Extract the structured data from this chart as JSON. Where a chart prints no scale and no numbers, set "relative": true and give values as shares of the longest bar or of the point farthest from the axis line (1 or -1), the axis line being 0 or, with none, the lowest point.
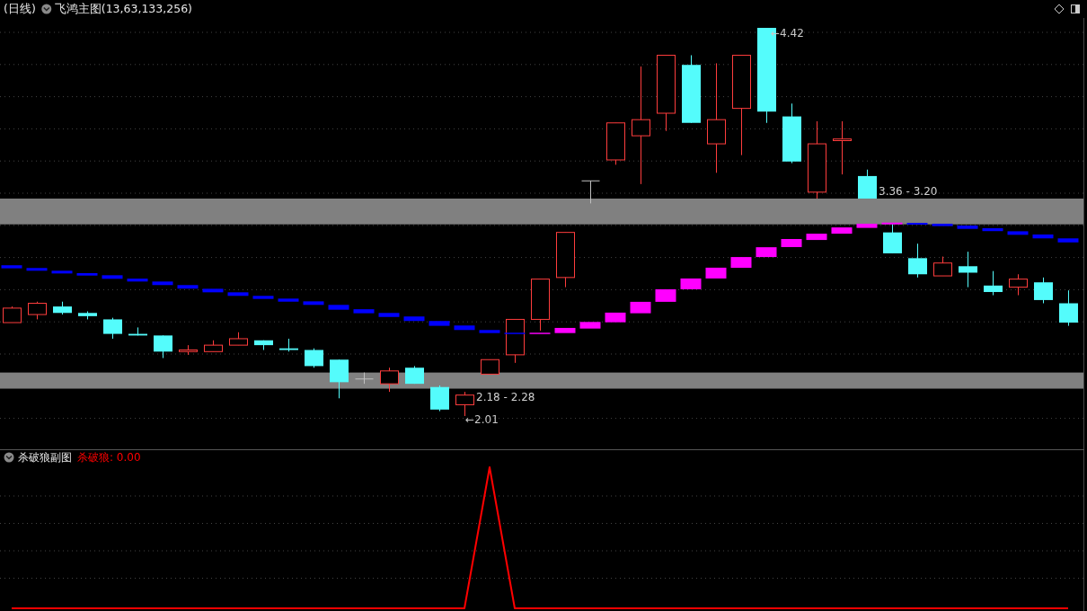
{
  "chart_data": [
    {
      "type": "candlestick",
      "title": "(日线)",
      "subtitle": "飞鸿主图(13,63,133,256)",
      "grid": true,
      "categories": [
        null,
        null,
        null,
        null,
        null,
        null,
        null,
        null,
        null,
        null,
        null,
        null,
        null,
        null,
        null,
        null,
        null,
        null,
        null,
        null,
        null,
        null,
        null,
        null,
        null,
        null,
        null,
        null,
        null,
        null,
        null,
        null,
        null,
        null,
        null,
        null,
        null,
        null,
        null,
        null,
        null,
        null,
        null
      ],
      "ohlc": [
        [
          2.59,
          2.69,
          2.59,
          2.68
        ],
        [
          2.64,
          2.72,
          2.61,
          2.71
        ],
        [
          2.69,
          2.72,
          2.64,
          2.65
        ],
        [
          2.65,
          2.66,
          2.61,
          2.63
        ],
        [
          2.61,
          2.62,
          2.49,
          2.52
        ],
        [
          2.52,
          2.56,
          2.51,
          2.51
        ],
        [
          2.51,
          2.51,
          2.37,
          2.41
        ],
        [
          2.41,
          2.45,
          2.39,
          2.42
        ],
        [
          2.41,
          2.48,
          2.41,
          2.45
        ],
        [
          2.45,
          2.53,
          2.45,
          2.49
        ],
        [
          2.48,
          2.48,
          2.42,
          2.45
        ],
        [
          2.43,
          2.49,
          2.41,
          2.42
        ],
        [
          2.42,
          2.43,
          2.31,
          2.32
        ],
        [
          2.36,
          2.36,
          2.12,
          2.22
        ],
        [
          2.24,
          2.28,
          2.21,
          2.24
        ],
        [
          2.21,
          2.31,
          2.16,
          2.29
        ],
        [
          2.31,
          2.32,
          2.21,
          2.21
        ],
        [
          2.19,
          2.2,
          2.04,
          2.05
        ],
        [
          2.08,
          2.16,
          2.01,
          2.14
        ],
        [
          2.27,
          2.36,
          2.27,
          2.36
        ],
        [
          2.39,
          2.61,
          2.34,
          2.61
        ],
        [
          2.61,
          2.86,
          2.54,
          2.86
        ],
        [
          2.87,
          3.15,
          2.81,
          3.15
        ],
        [
          3.47,
          3.47,
          3.33,
          3.47
        ],
        [
          3.6,
          3.83,
          3.57,
          3.83
        ],
        [
          3.75,
          4.18,
          3.45,
          3.85
        ],
        [
          3.89,
          4.25,
          3.78,
          4.25
        ],
        [
          4.19,
          4.25,
          3.83,
          3.83
        ],
        [
          3.7,
          4.2,
          3.52,
          3.85
        ],
        [
          3.92,
          4.25,
          3.63,
          4.25
        ],
        [
          4.42,
          4.42,
          3.83,
          3.9
        ],
        [
          3.87,
          3.95,
          3.58,
          3.59
        ],
        [
          3.4,
          3.84,
          3.36,
          3.7
        ],
        [
          3.72,
          3.84,
          3.51,
          3.73
        ],
        [
          3.5,
          3.54,
          3.36,
          3.36
        ],
        [
          3.15,
          3.2,
          3.02,
          3.02
        ],
        [
          2.99,
          3.08,
          2.87,
          2.89
        ],
        [
          2.88,
          3.0,
          2.88,
          2.96
        ],
        [
          2.94,
          3.03,
          2.81,
          2.9
        ],
        [
          2.82,
          2.91,
          2.76,
          2.78
        ],
        [
          2.81,
          2.89,
          2.76,
          2.86
        ],
        [
          2.84,
          2.87,
          2.71,
          2.73
        ],
        [
          2.71,
          2.79,
          2.57,
          2.59
        ]
      ],
      "colors": [
        "#ff3d3d",
        "#ff3d3d",
        "#54fcfc",
        "#54fcfc",
        "#54fcfc",
        "#54fcfc",
        "#54fcfc",
        "#ff3d3d",
        "#ff3d3d",
        "#ff3d3d",
        "#54fcfc",
        "#54fcfc",
        "#54fcfc",
        "#54fcfc",
        "#c0c0c0",
        "#ff3d3d",
        "#54fcfc",
        "#54fcfc",
        "#ff3d3d",
        "#ff3d3d",
        "#ff3d3d",
        "#ff3d3d",
        "#ff3d3d",
        "#c0c0c0",
        "#ff3d3d",
        "#ff3d3d",
        "#ff3d3d",
        "#54fcfc",
        "#ff3d3d",
        "#ff3d3d",
        "#54fcfc",
        "#54fcfc",
        "#ff3d3d",
        "#ff3d3d",
        "#54fcfc",
        "#54fcfc",
        "#54fcfc",
        "#ff3d3d",
        "#54fcfc",
        "#54fcfc",
        "#ff3d3d",
        "#54fcfc",
        "#54fcfc"
      ],
      "series": [
        {
          "type": "bar",
          "color": "#0000ff",
          "base": [
            2.927,
            2.912,
            2.895,
            2.882,
            2.862,
            2.845,
            2.823,
            2.801,
            2.778,
            2.756,
            2.737,
            2.72,
            2.7,
            2.67,
            2.648,
            2.625,
            2.6,
            2.57,
            2.544,
            2.525,
            2.519,
            null,
            null,
            null,
            null,
            null,
            null,
            null,
            null,
            null,
            null,
            null,
            null,
            null,
            null,
            null,
            3.198,
            3.189,
            3.172,
            3.158,
            3.135,
            3.113,
            3.088
          ],
          "values": [
            0.019,
            0.017,
            0.017,
            0.015,
            0.022,
            0.018,
            0.022,
            0.022,
            0.022,
            0.022,
            0.019,
            0.019,
            0.022,
            0.03,
            0.025,
            0.025,
            0.028,
            0.03,
            0.028,
            0.019,
            0.008,
            null,
            null,
            null,
            null,
            null,
            null,
            null,
            null,
            null,
            null,
            null,
            null,
            null,
            null,
            null,
            0.011,
            0.015,
            0.021,
            0.018,
            0.022,
            0.024,
            0.025
          ]
        },
        {
          "type": "bar",
          "color": "#ff00ff",
          "base": [
            null,
            null,
            null,
            null,
            null,
            null,
            null,
            null,
            null,
            null,
            null,
            null,
            null,
            null,
            null,
            null,
            null,
            null,
            null,
            null,
            null,
            2.519,
            2.525,
            2.553,
            2.592,
            2.648,
            2.719,
            2.797,
            2.864,
            2.93,
            2.997,
            3.059,
            3.103,
            3.142,
            3.178,
            3.2,
            null,
            null,
            null,
            null,
            null,
            null,
            null
          ],
          "values": [
            null,
            null,
            null,
            null,
            null,
            null,
            null,
            null,
            null,
            null,
            null,
            null,
            null,
            null,
            null,
            null,
            null,
            null,
            null,
            null,
            null,
            0.008,
            0.032,
            0.041,
            0.06,
            0.071,
            0.078,
            0.067,
            0.067,
            0.067,
            0.061,
            0.05,
            0.039,
            0.039,
            0.026,
            0.011,
            null,
            null,
            null,
            null,
            null,
            null,
            null
          ]
        }
      ],
      "bands": [
        {
          "axis": "y",
          "from": 2.18,
          "to": 2.28,
          "label": "2.18 - 2.28",
          "color": "#808080"
        },
        {
          "axis": "y",
          "from": 3.36,
          "to": 3.2,
          "label": "3.36 - 3.20",
          "color": "#808080"
        }
      ],
      "annotations": [
        "←4.42",
        "←2.01"
      ]
    },
    {
      "type": "line",
      "title": "杀破狼副图",
      "relative": true,
      "grid": true,
      "legend": "top left",
      "categories": [
        null,
        null,
        null,
        null,
        null,
        null,
        null,
        null,
        null,
        null,
        null,
        null,
        null,
        null,
        null,
        null,
        null,
        null,
        null,
        null,
        null,
        null,
        null,
        null,
        null,
        null,
        null,
        null,
        null,
        null,
        null,
        null,
        null,
        null,
        null,
        null,
        null,
        null,
        null,
        null,
        null,
        null,
        null
      ],
      "series": [
        {
          "name": "杀破狼: 0.00",
          "color": "#ff0000",
          "values": [
            0,
            0,
            0,
            0,
            0,
            0,
            0,
            0,
            0,
            0,
            0,
            0,
            0,
            0,
            0,
            0,
            0,
            0,
            0,
            1,
            0,
            0,
            0,
            0,
            0,
            0,
            0,
            0,
            0,
            0,
            0,
            0,
            0,
            0,
            0,
            0,
            0,
            0,
            0,
            0,
            0,
            0,
            0
          ]
        }
      ]
    }
  ]
}
